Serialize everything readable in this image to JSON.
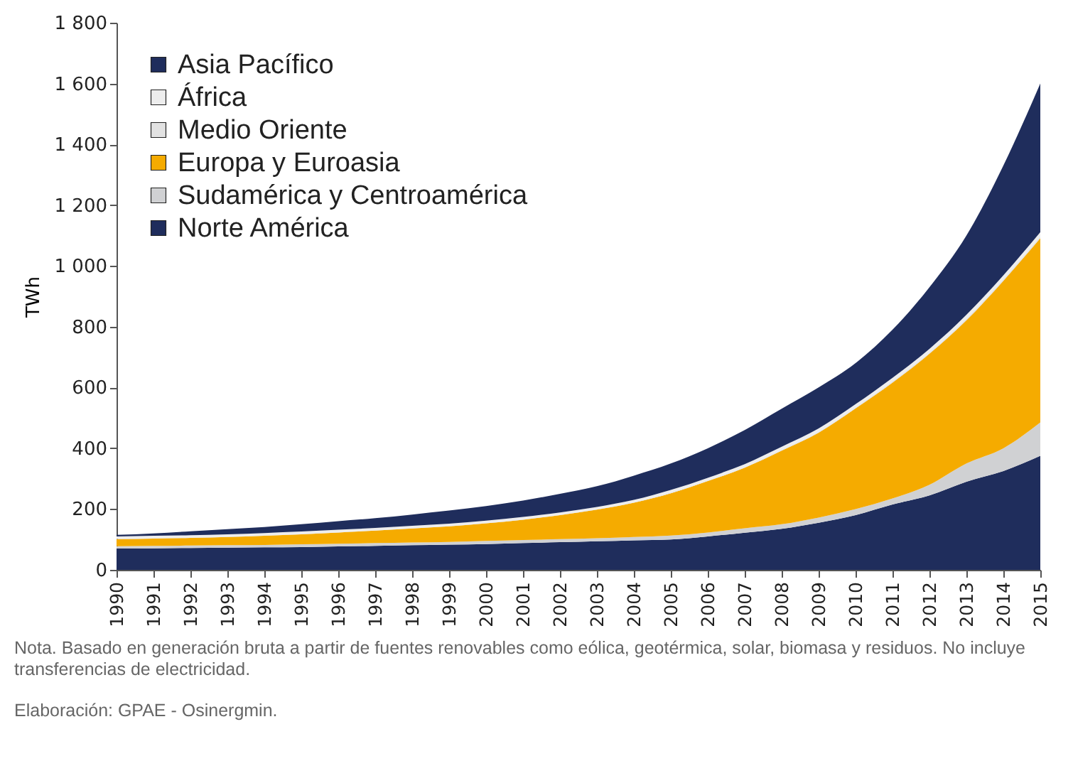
{
  "chart_data": {
    "type": "area",
    "stacked": true,
    "ylabel": "TWh",
    "x": [
      1990,
      1991,
      1992,
      1993,
      1994,
      1995,
      1996,
      1997,
      1998,
      1999,
      2000,
      2001,
      2002,
      2003,
      2004,
      2005,
      2006,
      2007,
      2008,
      2009,
      2010,
      2011,
      2012,
      2013,
      2014,
      2015
    ],
    "xlim": [
      1990,
      2015
    ],
    "xticks": [
      1990,
      1991,
      1992,
      1993,
      1994,
      1995,
      1996,
      1997,
      1998,
      1999,
      2000,
      2001,
      2002,
      2003,
      2004,
      2005,
      2006,
      2007,
      2008,
      2009,
      2010,
      2011,
      2012,
      2013,
      2014,
      2015
    ],
    "ylim": [
      0,
      1800
    ],
    "yticks": [
      0,
      200,
      400,
      600,
      800,
      {
        "value": 1000,
        "label": "1 000"
      },
      {
        "value": 1200,
        "label": "1 200"
      },
      {
        "value": 1400,
        "label": "1 400"
      },
      {
        "value": 1600,
        "label": "1 600"
      },
      {
        "value": 1800,
        "label": "1 800"
      }
    ],
    "grid": false,
    "legend": "top left",
    "series": [
      {
        "name": "Norte América",
        "color": "#1f2d5c",
        "values": [
          70,
          71,
          72,
          73,
          74,
          75,
          77,
          79,
          81,
          83,
          85,
          88,
          91,
          94,
          97,
          100,
          110,
          122,
          135,
          155,
          180,
          215,
          245,
          290,
          325,
          375
        ]
      },
      {
        "name": "Sudamérica y Centroamérica",
        "color": "#d0d1d3",
        "values": [
          8,
          8,
          8,
          8,
          8,
          9,
          9,
          9,
          9,
          9,
          10,
          10,
          10,
          10,
          11,
          13,
          13,
          15,
          15,
          17,
          20,
          20,
          35,
          60,
          75,
          110
        ]
      },
      {
        "name": "Europa y Euroasia",
        "color": "#f5ab00",
        "values": [
          23,
          24,
          25,
          27,
          30,
          33,
          37,
          41,
          46,
          51,
          58,
          67,
          79,
          94,
          113,
          139,
          169,
          199,
          242,
          279,
          331,
          381,
          431,
          471,
          551,
          606
        ]
      },
      {
        "name": "Medio Oriente",
        "color": "#e2e2e2",
        "values": [
          1,
          1,
          1,
          1,
          1,
          1,
          1,
          1,
          1,
          1,
          1,
          1,
          1,
          1,
          1,
          2,
          2,
          2,
          3,
          3,
          3,
          4,
          4,
          5,
          5,
          6
        ]
      },
      {
        "name": "África",
        "color": "#ededed",
        "values": [
          8,
          8,
          8,
          8,
          8,
          8,
          8,
          8,
          8,
          8,
          8,
          8,
          8,
          8,
          8,
          9,
          9,
          10,
          10,
          11,
          11,
          12,
          12,
          13,
          13,
          14
        ]
      },
      {
        "name": "Asia Pacífico",
        "color": "#1f2d5c",
        "values": [
          5,
          8,
          13,
          17,
          20,
          24,
          28,
          32,
          37,
          43,
          48,
          54,
          61,
          68,
          80,
          87,
          97,
          112,
          125,
          135,
          135,
          158,
          203,
          261,
          361,
          489
        ]
      }
    ],
    "annotations": [
      "Nota. Basado en generación bruta a partir de fuentes renovables como eólica, geotérmica, solar, biomasa y residuos. No incluye transferencias de electricidad.",
      "Elaboración: GPAE - Osinergmin."
    ]
  }
}
